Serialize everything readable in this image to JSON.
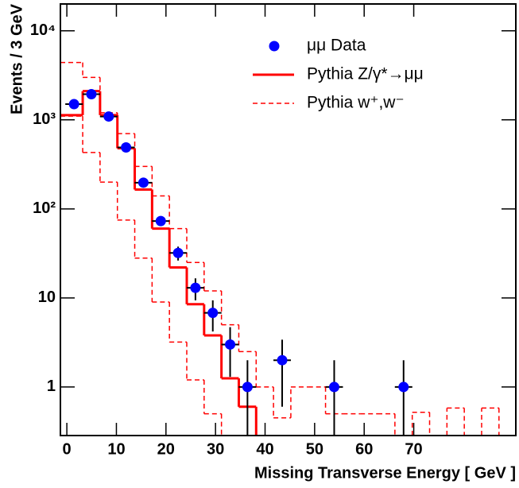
{
  "chart_data": {
    "type": "histogram",
    "x_label": "Missing Transverse Energy [ GeV ]",
    "y_label": "Events / 3 GeV",
    "log_y": true,
    "xlim": [
      -1.3,
      90.6
    ],
    "xticks": [
      0,
      10,
      20,
      30,
      40,
      50,
      60,
      70
    ],
    "ylim": [
      0.285,
      20000
    ],
    "yticks": [
      1,
      10,
      {
        "value": 100,
        "label": "10²"
      },
      {
        "value": 1000,
        "label": "10³"
      },
      {
        "value": 10000,
        "label": "10⁴"
      }
    ],
    "legend_position": "upper right",
    "bins": [
      -1.3,
      3.2,
      6.7,
      10.2,
      13.7,
      17.2,
      20.7,
      24.2,
      27.7,
      31.2,
      34.7,
      38.2,
      41.7,
      45.2,
      48.7,
      52.2,
      55.7,
      59.2,
      62.7,
      66.2,
      69.7,
      73.2,
      76.7,
      80.2,
      83.7,
      87.2,
      90.6
    ],
    "points": {
      "name": "μμ Data",
      "color": "#0000ff",
      "x": [
        1.45,
        4.95,
        8.45,
        11.95,
        15.45,
        18.95,
        22.45,
        25.95,
        29.45,
        32.95,
        36.45,
        43.45,
        53.95,
        67.95
      ],
      "values": [
        1500,
        1940,
        1090,
        490,
        197,
        73,
        32,
        13,
        6.8,
        3,
        1,
        2,
        1,
        1
      ],
      "errors": [
        39,
        44,
        33,
        22,
        14,
        8.5,
        5.7,
        3.6,
        2.6,
        1.7,
        1,
        1.4,
        1,
        1
      ]
    },
    "series": [
      {
        "name": "Pythia Z/γ*→μμ",
        "color": "#ff0000",
        "style": "solid",
        "values": [
          1130,
          2100,
          1130,
          480,
          165,
          60,
          22,
          8.5,
          3.8,
          1.25,
          0.6,
          0,
          0,
          0,
          0,
          0,
          0,
          0,
          0,
          0,
          0,
          0,
          0,
          0,
          0,
          0
        ]
      },
      {
        "name": "Pythia w⁺,w⁻",
        "color": "#ff0000",
        "style": "dashed",
        "values": [
          4400,
          3000,
          1200,
          700,
          300,
          140,
          60,
          25,
          12,
          5,
          2.5,
          1,
          0.45,
          1,
          1,
          0.5,
          0.5,
          0.5,
          0.5,
          0,
          0.52,
          0,
          0.58,
          0,
          0.58,
          0
        ],
        "lower": [
          1100,
          430,
          200,
          75,
          28,
          9,
          3.2,
          1.2,
          0.5,
          0,
          0,
          0,
          0,
          0,
          0,
          0,
          0,
          0,
          0,
          0,
          0,
          0,
          0,
          0,
          0,
          0
        ]
      }
    ]
  }
}
